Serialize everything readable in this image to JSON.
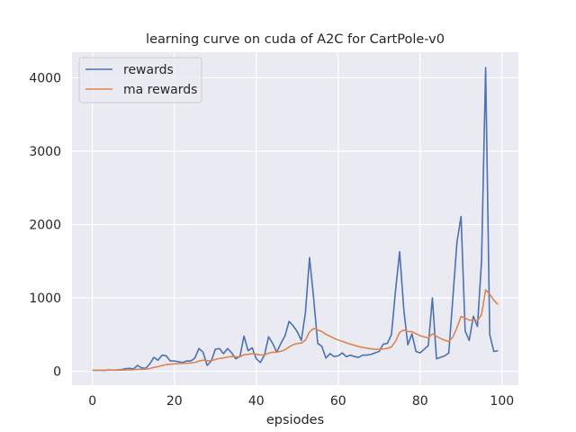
{
  "chart_data": {
    "type": "line",
    "title": "learning curve on cuda of A2C for CartPole-v0",
    "xlabel": "epsiodes",
    "ylabel": "",
    "xlim": [
      -5,
      104
    ],
    "ylim": [
      -190,
      4350
    ],
    "xticks": [
      0,
      20,
      40,
      60,
      80,
      100
    ],
    "yticks": [
      0,
      1000,
      2000,
      3000,
      4000
    ],
    "grid": true,
    "legend_position": "top-left",
    "series": [
      {
        "name": "rewards",
        "color": "#4c72b0",
        "x": [
          0,
          1,
          2,
          3,
          4,
          5,
          6,
          7,
          8,
          9,
          10,
          11,
          12,
          13,
          14,
          15,
          16,
          17,
          18,
          19,
          20,
          21,
          22,
          23,
          24,
          25,
          26,
          27,
          28,
          29,
          30,
          31,
          32,
          33,
          34,
          35,
          36,
          37,
          38,
          39,
          40,
          41,
          42,
          43,
          44,
          45,
          46,
          47,
          48,
          49,
          50,
          51,
          52,
          53,
          54,
          55,
          56,
          57,
          58,
          59,
          60,
          61,
          62,
          63,
          64,
          65,
          66,
          67,
          68,
          69,
          70,
          71,
          72,
          73,
          74,
          75,
          76,
          77,
          78,
          79,
          80,
          81,
          82,
          83,
          84,
          85,
          86,
          87,
          88,
          89,
          90,
          91,
          92,
          93,
          94,
          95,
          96,
          97,
          98,
          99
        ],
        "values": [
          15,
          12,
          14,
          10,
          20,
          15,
          18,
          22,
          35,
          40,
          30,
          80,
          45,
          40,
          100,
          190,
          150,
          220,
          210,
          140,
          140,
          130,
          120,
          140,
          140,
          180,
          310,
          260,
          80,
          140,
          300,
          310,
          240,
          310,
          250,
          170,
          200,
          480,
          280,
          320,
          170,
          120,
          220,
          470,
          380,
          260,
          380,
          480,
          680,
          620,
          540,
          420,
          800,
          1550,
          1000,
          380,
          340,
          180,
          240,
          200,
          210,
          250,
          200,
          220,
          200,
          190,
          220,
          220,
          230,
          250,
          270,
          370,
          380,
          500,
          1100,
          1630,
          850,
          360,
          510,
          270,
          250,
          300,
          350,
          1000,
          170,
          190,
          210,
          250,
          1000,
          1760,
          2110,
          550,
          420,
          750,
          610,
          1500,
          4140,
          500,
          270,
          280
        ]
      },
      {
        "name": "ma rewards",
        "color": "#dd8452",
        "x": [
          0,
          1,
          2,
          3,
          4,
          5,
          6,
          7,
          8,
          9,
          10,
          11,
          12,
          13,
          14,
          15,
          16,
          17,
          18,
          19,
          20,
          21,
          22,
          23,
          24,
          25,
          26,
          27,
          28,
          29,
          30,
          31,
          32,
          33,
          34,
          35,
          36,
          37,
          38,
          39,
          40,
          41,
          42,
          43,
          44,
          45,
          46,
          47,
          48,
          49,
          50,
          51,
          52,
          53,
          54,
          55,
          56,
          57,
          58,
          59,
          60,
          61,
          62,
          63,
          64,
          65,
          66,
          67,
          68,
          69,
          70,
          71,
          72,
          73,
          74,
          75,
          76,
          77,
          78,
          79,
          80,
          81,
          82,
          83,
          84,
          85,
          86,
          87,
          88,
          89,
          90,
          91,
          92,
          93,
          94,
          95,
          96,
          97,
          98,
          99
        ],
        "values": [
          15,
          14,
          14,
          14,
          15,
          15,
          15,
          16,
          18,
          20,
          21,
          27,
          29,
          30,
          37,
          52,
          62,
          78,
          91,
          96,
          101,
          104,
          106,
          110,
          113,
          120,
          139,
          151,
          144,
          144,
          160,
          175,
          182,
          195,
          200,
          197,
          197,
          225,
          231,
          240,
          233,
          222,
          222,
          247,
          260,
          260,
          272,
          293,
          332,
          361,
          379,
          383,
          425,
          537,
          583,
          563,
          541,
          505,
          478,
          450,
          426,
          408,
          387,
          370,
          353,
          337,
          325,
          315,
          306,
          300,
          297,
          304,
          312,
          331,
          408,
          530,
          562,
          542,
          539,
          512,
          486,
          468,
          456,
          510,
          476,
          447,
          423,
          406,
          465,
          595,
          746,
          726,
          696,
          701,
          692,
          773,
          1110,
          1049,
          971,
          910
        ]
      }
    ]
  }
}
